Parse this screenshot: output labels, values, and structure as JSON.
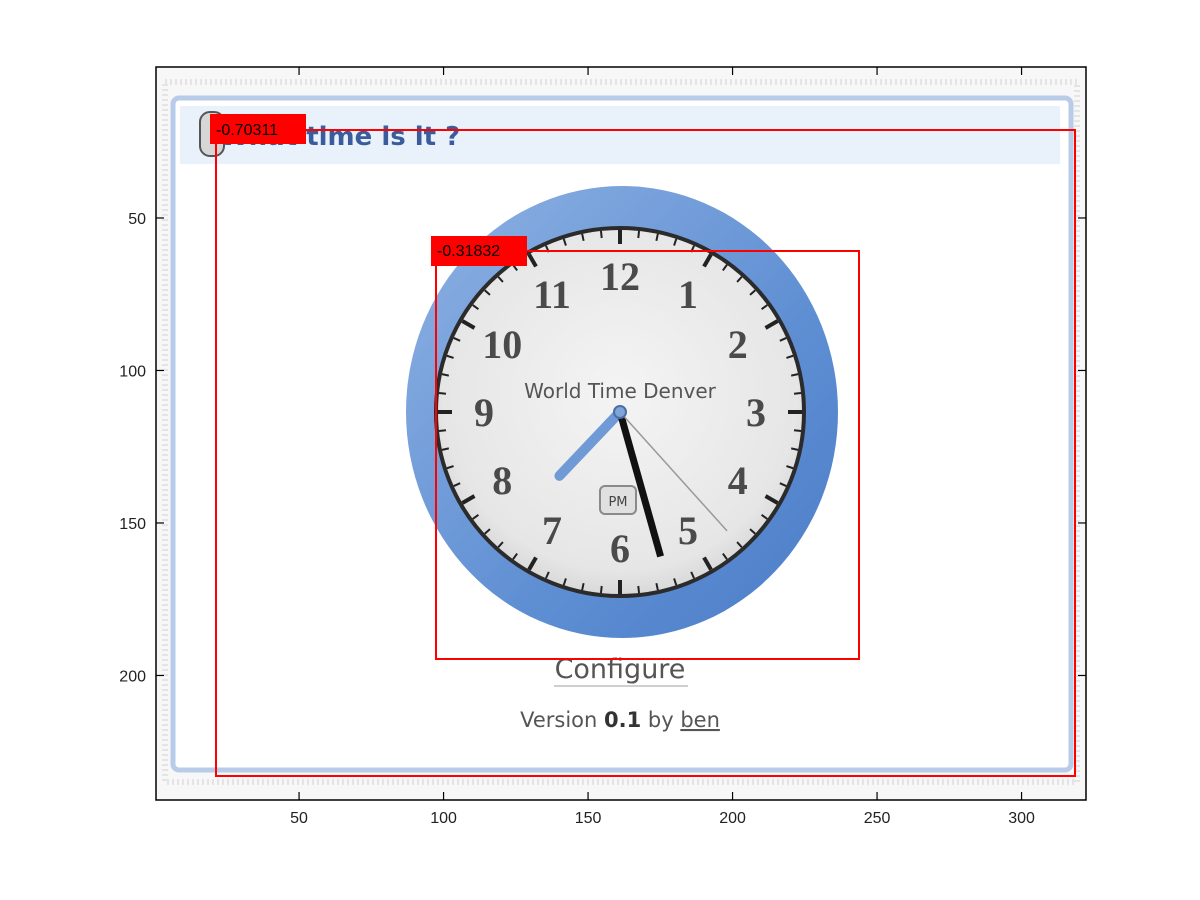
{
  "axes": {
    "x_ticks": [
      "50",
      "100",
      "150",
      "200",
      "250",
      "300"
    ],
    "y_ticks": [
      "50",
      "100",
      "150",
      "200"
    ]
  },
  "gadget": {
    "title": "What time is it ?",
    "clock_caption": "World Time Denver",
    "ampm_badge": "PM",
    "configure_label": "Configure",
    "version_prefix": "Version ",
    "version_number": "0.1",
    "version_by": " by ",
    "author": "ben",
    "hour_numerals": [
      "12",
      "1",
      "2",
      "3",
      "4",
      "5",
      "6",
      "7",
      "8",
      "9",
      "10",
      "11"
    ],
    "clock_time": {
      "hour": 7,
      "minute": 27,
      "second": 23
    }
  },
  "detections": [
    {
      "name": "outer",
      "score": "-0.70311"
    },
    {
      "name": "clock",
      "score": "-0.31832"
    }
  ],
  "colors": {
    "detection_box": "#ff0000",
    "clock_ring": "#6f9ad6",
    "gadget_border": "#b8cbe8",
    "title_bar": "#e9f1fb"
  }
}
